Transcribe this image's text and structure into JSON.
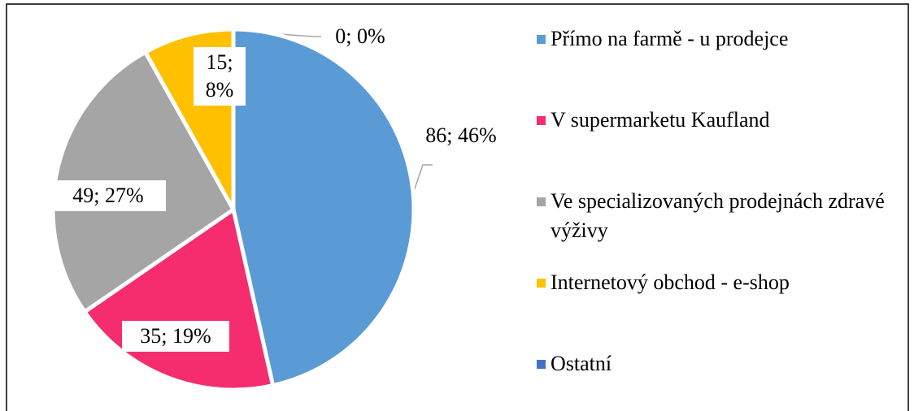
{
  "chart_data": {
    "type": "pie",
    "categories": [
      "Přímo na farmě - u prodejce",
      "V supermarketu Kaufland",
      "Ve specializovaných prodejnách zdravé výživy",
      "Internetový obchod - e-shop",
      "Ostatní"
    ],
    "values": [
      86,
      35,
      49,
      15,
      0
    ],
    "value_labels": [
      "86; 46%",
      "35; 19%",
      "49; 27%",
      "15; 8%",
      "0; 0%"
    ],
    "colors": [
      "#5b9bd5",
      "#f52c6e",
      "#a5a5a5",
      "#ffc000",
      "#4472c4"
    ],
    "legend": "right"
  }
}
